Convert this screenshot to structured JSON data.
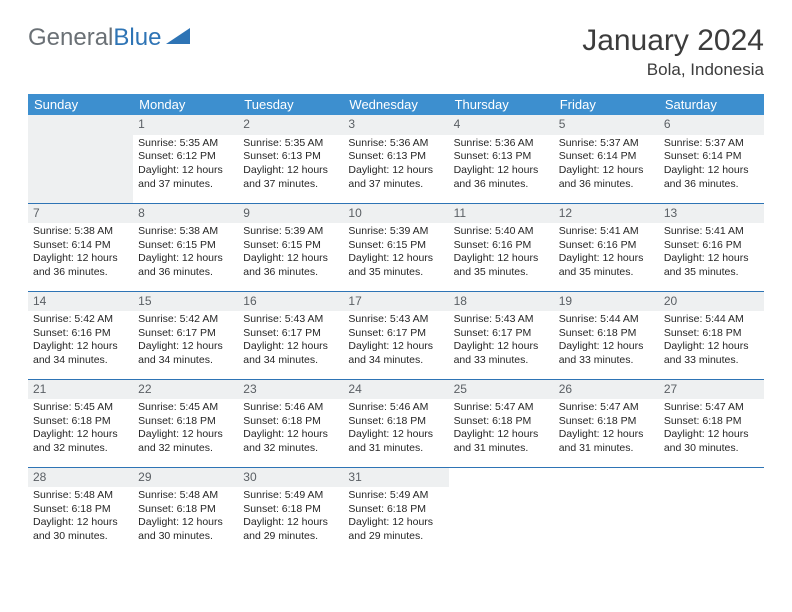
{
  "brand": {
    "part1": "General",
    "part2": "Blue"
  },
  "title": "January 2024",
  "location": "Bola, Indonesia",
  "colors": {
    "header_bg": "#3d8fcf",
    "header_text": "#ffffff",
    "daynum_bg": "#eef0f1",
    "daynum_text": "#5a5f64",
    "border": "#2e74b5",
    "body_text": "#262626",
    "logo_gray": "#6a7075",
    "logo_blue": "#2e74b5"
  },
  "weekdays": [
    "Sunday",
    "Monday",
    "Tuesday",
    "Wednesday",
    "Thursday",
    "Friday",
    "Saturday"
  ],
  "start_offset": 1,
  "days": [
    {
      "n": 1,
      "sunrise": "5:35 AM",
      "sunset": "6:12 PM",
      "daylight": "12 hours and 37 minutes."
    },
    {
      "n": 2,
      "sunrise": "5:35 AM",
      "sunset": "6:13 PM",
      "daylight": "12 hours and 37 minutes."
    },
    {
      "n": 3,
      "sunrise": "5:36 AM",
      "sunset": "6:13 PM",
      "daylight": "12 hours and 37 minutes."
    },
    {
      "n": 4,
      "sunrise": "5:36 AM",
      "sunset": "6:13 PM",
      "daylight": "12 hours and 36 minutes."
    },
    {
      "n": 5,
      "sunrise": "5:37 AM",
      "sunset": "6:14 PM",
      "daylight": "12 hours and 36 minutes."
    },
    {
      "n": 6,
      "sunrise": "5:37 AM",
      "sunset": "6:14 PM",
      "daylight": "12 hours and 36 minutes."
    },
    {
      "n": 7,
      "sunrise": "5:38 AM",
      "sunset": "6:14 PM",
      "daylight": "12 hours and 36 minutes."
    },
    {
      "n": 8,
      "sunrise": "5:38 AM",
      "sunset": "6:15 PM",
      "daylight": "12 hours and 36 minutes."
    },
    {
      "n": 9,
      "sunrise": "5:39 AM",
      "sunset": "6:15 PM",
      "daylight": "12 hours and 36 minutes."
    },
    {
      "n": 10,
      "sunrise": "5:39 AM",
      "sunset": "6:15 PM",
      "daylight": "12 hours and 35 minutes."
    },
    {
      "n": 11,
      "sunrise": "5:40 AM",
      "sunset": "6:16 PM",
      "daylight": "12 hours and 35 minutes."
    },
    {
      "n": 12,
      "sunrise": "5:41 AM",
      "sunset": "6:16 PM",
      "daylight": "12 hours and 35 minutes."
    },
    {
      "n": 13,
      "sunrise": "5:41 AM",
      "sunset": "6:16 PM",
      "daylight": "12 hours and 35 minutes."
    },
    {
      "n": 14,
      "sunrise": "5:42 AM",
      "sunset": "6:16 PM",
      "daylight": "12 hours and 34 minutes."
    },
    {
      "n": 15,
      "sunrise": "5:42 AM",
      "sunset": "6:17 PM",
      "daylight": "12 hours and 34 minutes."
    },
    {
      "n": 16,
      "sunrise": "5:43 AM",
      "sunset": "6:17 PM",
      "daylight": "12 hours and 34 minutes."
    },
    {
      "n": 17,
      "sunrise": "5:43 AM",
      "sunset": "6:17 PM",
      "daylight": "12 hours and 34 minutes."
    },
    {
      "n": 18,
      "sunrise": "5:43 AM",
      "sunset": "6:17 PM",
      "daylight": "12 hours and 33 minutes."
    },
    {
      "n": 19,
      "sunrise": "5:44 AM",
      "sunset": "6:18 PM",
      "daylight": "12 hours and 33 minutes."
    },
    {
      "n": 20,
      "sunrise": "5:44 AM",
      "sunset": "6:18 PM",
      "daylight": "12 hours and 33 minutes."
    },
    {
      "n": 21,
      "sunrise": "5:45 AM",
      "sunset": "6:18 PM",
      "daylight": "12 hours and 32 minutes."
    },
    {
      "n": 22,
      "sunrise": "5:45 AM",
      "sunset": "6:18 PM",
      "daylight": "12 hours and 32 minutes."
    },
    {
      "n": 23,
      "sunrise": "5:46 AM",
      "sunset": "6:18 PM",
      "daylight": "12 hours and 32 minutes."
    },
    {
      "n": 24,
      "sunrise": "5:46 AM",
      "sunset": "6:18 PM",
      "daylight": "12 hours and 31 minutes."
    },
    {
      "n": 25,
      "sunrise": "5:47 AM",
      "sunset": "6:18 PM",
      "daylight": "12 hours and 31 minutes."
    },
    {
      "n": 26,
      "sunrise": "5:47 AM",
      "sunset": "6:18 PM",
      "daylight": "12 hours and 31 minutes."
    },
    {
      "n": 27,
      "sunrise": "5:47 AM",
      "sunset": "6:18 PM",
      "daylight": "12 hours and 30 minutes."
    },
    {
      "n": 28,
      "sunrise": "5:48 AM",
      "sunset": "6:18 PM",
      "daylight": "12 hours and 30 minutes."
    },
    {
      "n": 29,
      "sunrise": "5:48 AM",
      "sunset": "6:18 PM",
      "daylight": "12 hours and 30 minutes."
    },
    {
      "n": 30,
      "sunrise": "5:49 AM",
      "sunset": "6:18 PM",
      "daylight": "12 hours and 29 minutes."
    },
    {
      "n": 31,
      "sunrise": "5:49 AM",
      "sunset": "6:18 PM",
      "daylight": "12 hours and 29 minutes."
    }
  ],
  "labels": {
    "sunrise": "Sunrise: ",
    "sunset": "Sunset: ",
    "daylight": "Daylight: "
  }
}
